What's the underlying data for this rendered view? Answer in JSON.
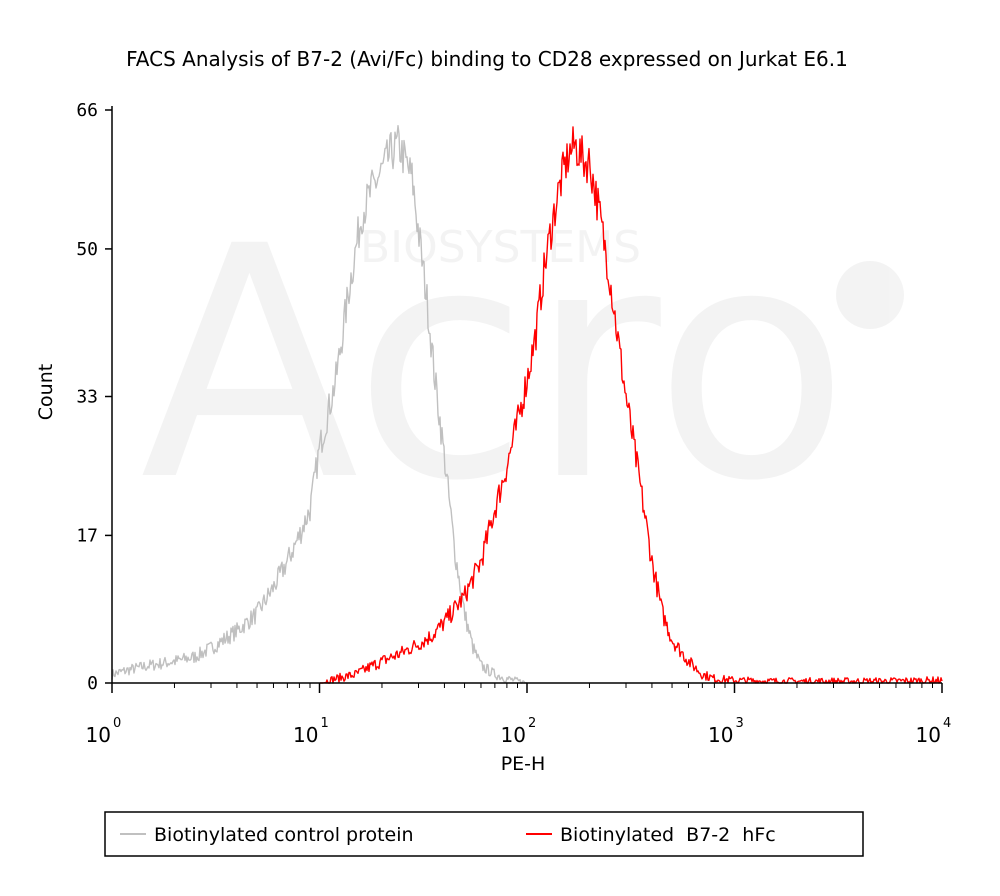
{
  "chart_data": {
    "type": "line",
    "title": "FACS Analysis of  B7-2 (Avi/Fc) binding to CD28 expressed on Jurkat E6.1",
    "xlabel": "PE-H",
    "ylabel": "Count",
    "xscale": "log",
    "xlim": [
      1,
      10000
    ],
    "ylim": [
      0,
      66
    ],
    "yticks": [
      0,
      17,
      33,
      50,
      66
    ],
    "xticks": [
      {
        "value": 1,
        "base": "10",
        "exp": "0"
      },
      {
        "value": 10,
        "base": "10",
        "exp": "1"
      },
      {
        "value": 100,
        "base": "10",
        "exp": "2"
      },
      {
        "value": 1000,
        "base": "10",
        "exp": "3"
      },
      {
        "value": 10000,
        "base": "10",
        "exp": "4"
      }
    ],
    "grid": false,
    "legend_position": "bottom",
    "series": [
      {
        "name": "Biotinylated control protein",
        "color": "#c0c0c0",
        "x": [
          1,
          1.2,
          1.5,
          2,
          2.5,
          3,
          4,
          5,
          6,
          7,
          8,
          9,
          10,
          12,
          14,
          16,
          18,
          20,
          22,
          24,
          26,
          28,
          30,
          33,
          36,
          40,
          45,
          50,
          55,
          60,
          70,
          80,
          90,
          100
        ],
        "y": [
          1,
          1.5,
          2,
          2.5,
          3,
          4,
          6,
          8,
          11,
          14,
          17,
          20,
          27,
          35,
          46,
          54,
          57,
          59,
          61,
          62,
          60,
          58,
          52,
          44,
          35,
          26,
          15,
          8,
          4,
          2,
          1,
          0.5,
          0.2,
          0
        ]
      },
      {
        "name": "Biotinylated  B7-2  hFc",
        "color": "#ff0000",
        "x": [
          10,
          12,
          15,
          18,
          20,
          25,
          30,
          35,
          40,
          50,
          60,
          70,
          80,
          90,
          100,
          110,
          120,
          130,
          140,
          150,
          160,
          170,
          180,
          190,
          200,
          220,
          250,
          280,
          300,
          350,
          400,
          450,
          500,
          600,
          700,
          800,
          1000,
          1500,
          2000,
          3000,
          5000,
          10000
        ],
        "y": [
          0,
          0.5,
          1,
          2,
          2.5,
          3.5,
          4.5,
          5.5,
          7,
          10,
          14,
          20,
          25,
          30,
          35,
          40,
          47,
          52,
          56,
          59,
          61,
          62,
          61,
          60,
          60,
          55,
          47,
          38,
          33,
          23,
          14,
          8,
          5,
          2.5,
          1,
          0.5,
          0.3,
          0.2,
          0.2,
          0.2,
          0.2,
          0.3
        ]
      }
    ]
  }
}
